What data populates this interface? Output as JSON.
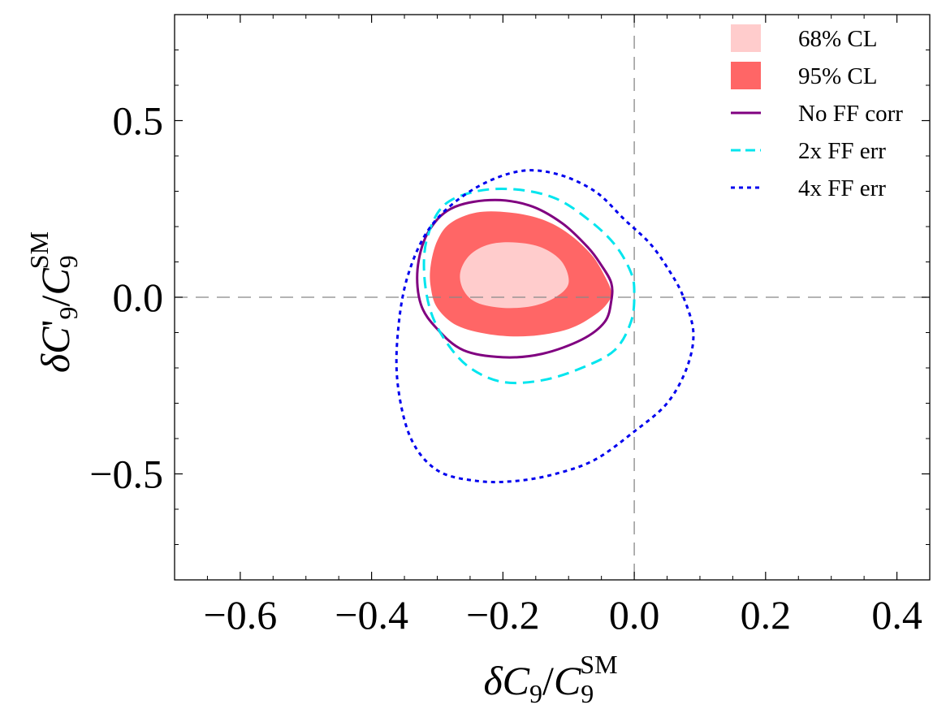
{
  "chart_data": {
    "type": "contour",
    "title": "",
    "xlabel": "δC9/C9SM",
    "ylabel": "δC'9/C9SM",
    "xlim": [
      -0.7,
      0.45
    ],
    "ylim": [
      -0.8,
      0.8
    ],
    "x_ticks": [
      -0.6,
      -0.4,
      -0.2,
      0.0,
      0.2,
      0.4
    ],
    "x_tick_labels": [
      "−0.6",
      "−0.4",
      "−0.2",
      "0.0",
      "0.2",
      "0.4"
    ],
    "y_ticks": [
      -0.5,
      0.0,
      0.5
    ],
    "y_tick_labels": [
      "−0.5",
      "0.0",
      "0.5"
    ],
    "reference_lines": {
      "x": 0.0,
      "y": 0.0,
      "style": "dashed",
      "color": "#888888"
    },
    "legend_position": "top-right",
    "series": [
      {
        "name": "68% CL",
        "kind": "filled",
        "color": "#ffcccc",
        "points": [
          [
            -0.1,
            0.04
          ],
          [
            -0.11,
            0.1
          ],
          [
            -0.14,
            0.14
          ],
          [
            -0.18,
            0.155
          ],
          [
            -0.22,
            0.15
          ],
          [
            -0.25,
            0.12
          ],
          [
            -0.265,
            0.07
          ],
          [
            -0.26,
            0.02
          ],
          [
            -0.24,
            -0.015
          ],
          [
            -0.2,
            -0.03
          ],
          [
            -0.155,
            -0.025
          ],
          [
            -0.12,
            0.0
          ],
          [
            -0.1,
            0.04
          ]
        ]
      },
      {
        "name": "95% CL",
        "kind": "filled",
        "color": "#ff6666",
        "points": [
          [
            -0.035,
            0.015
          ],
          [
            -0.045,
            0.06
          ],
          [
            -0.065,
            0.12
          ],
          [
            -0.1,
            0.18
          ],
          [
            -0.14,
            0.22
          ],
          [
            -0.19,
            0.24
          ],
          [
            -0.24,
            0.24
          ],
          [
            -0.28,
            0.21
          ],
          [
            -0.3,
            0.16
          ],
          [
            -0.31,
            0.09
          ],
          [
            -0.31,
            0.03
          ],
          [
            -0.3,
            -0.03
          ],
          [
            -0.27,
            -0.08
          ],
          [
            -0.22,
            -0.105
          ],
          [
            -0.16,
            -0.11
          ],
          [
            -0.1,
            -0.09
          ],
          [
            -0.06,
            -0.05
          ],
          [
            -0.04,
            -0.015
          ],
          [
            -0.035,
            0.015
          ]
        ]
      },
      {
        "name": "No FF corr",
        "kind": "line",
        "style": "solid",
        "color": "#800080",
        "points": [
          [
            -0.07,
            0.14
          ],
          [
            -0.11,
            0.21
          ],
          [
            -0.16,
            0.26
          ],
          [
            -0.22,
            0.275
          ],
          [
            -0.28,
            0.25
          ],
          [
            -0.315,
            0.18
          ],
          [
            -0.33,
            0.08
          ],
          [
            -0.325,
            -0.02
          ],
          [
            -0.3,
            -0.09
          ],
          [
            -0.26,
            -0.15
          ],
          [
            -0.2,
            -0.17
          ],
          [
            -0.14,
            -0.16
          ],
          [
            -0.08,
            -0.12
          ],
          [
            -0.045,
            -0.07
          ],
          [
            -0.035,
            -0.01
          ],
          [
            -0.035,
            0.04
          ],
          [
            -0.05,
            0.09
          ],
          [
            -0.07,
            0.14
          ]
        ]
      },
      {
        "name": "2x FF err",
        "kind": "line",
        "style": "dashed",
        "color": "#00e5ee",
        "points": [
          [
            -0.03,
            0.15
          ],
          [
            -0.07,
            0.22
          ],
          [
            -0.12,
            0.28
          ],
          [
            -0.18,
            0.305
          ],
          [
            -0.24,
            0.3
          ],
          [
            -0.29,
            0.26
          ],
          [
            -0.315,
            0.17
          ],
          [
            -0.32,
            0.07
          ],
          [
            -0.31,
            -0.04
          ],
          [
            -0.285,
            -0.13
          ],
          [
            -0.25,
            -0.2
          ],
          [
            -0.2,
            -0.24
          ],
          [
            -0.14,
            -0.235
          ],
          [
            -0.08,
            -0.2
          ],
          [
            -0.03,
            -0.15
          ],
          [
            -0.005,
            -0.07
          ],
          [
            0.0,
            0.01
          ],
          [
            -0.005,
            0.07
          ],
          [
            -0.03,
            0.15
          ]
        ]
      },
      {
        "name": "4x FF err",
        "kind": "line",
        "style": "dotted",
        "color": "#0000ee",
        "points": [
          [
            0.075,
            0.0
          ],
          [
            0.09,
            -0.1
          ],
          [
            0.08,
            -0.2
          ],
          [
            0.05,
            -0.3
          ],
          [
            0.0,
            -0.38
          ],
          [
            -0.06,
            -0.46
          ],
          [
            -0.12,
            -0.5
          ],
          [
            -0.18,
            -0.52
          ],
          [
            -0.24,
            -0.52
          ],
          [
            -0.3,
            -0.49
          ],
          [
            -0.34,
            -0.4
          ],
          [
            -0.36,
            -0.25
          ],
          [
            -0.36,
            -0.1
          ],
          [
            -0.345,
            0.06
          ],
          [
            -0.31,
            0.2
          ],
          [
            -0.25,
            0.3
          ],
          [
            -0.18,
            0.355
          ],
          [
            -0.12,
            0.35
          ],
          [
            -0.06,
            0.3
          ],
          [
            -0.015,
            0.22
          ],
          [
            0.025,
            0.15
          ],
          [
            0.055,
            0.07
          ],
          [
            0.075,
            0.0
          ]
        ]
      }
    ]
  }
}
